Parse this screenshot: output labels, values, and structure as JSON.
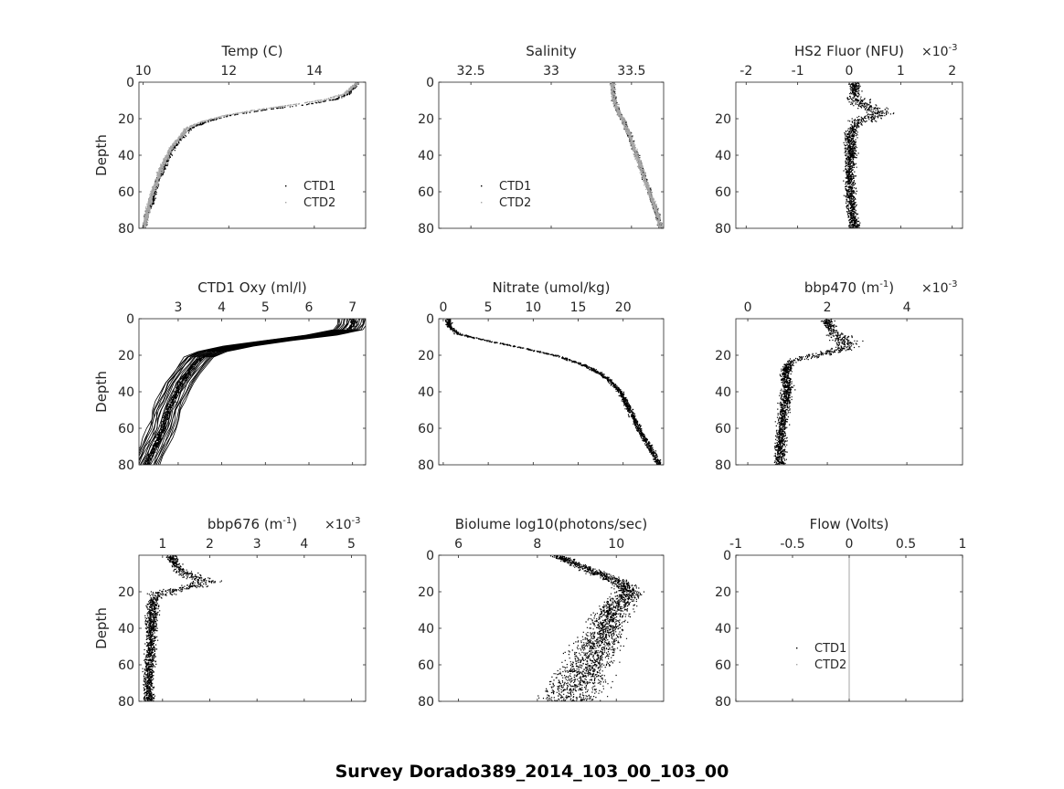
{
  "figure": {
    "suptitle": "Survey Dorado389_2014_103_00_103_00"
  },
  "colors": {
    "ctd1": "#000000",
    "ctd2": "#a6a6a6",
    "axis": "#262626"
  },
  "chart_data": [
    {
      "id": "temp",
      "type": "scatter",
      "title": "Temp (C)",
      "ylabel": "Depth",
      "xlim": [
        9.9,
        15.2
      ],
      "ylim": [
        0,
        80
      ],
      "y_reversed": true,
      "xticks": [
        10,
        12,
        14
      ],
      "yticks": [
        0,
        20,
        40,
        60,
        80
      ],
      "legend": {
        "placement": "lower-right",
        "entries": [
          "CTD1",
          "CTD2"
        ]
      },
      "series": [
        {
          "name": "CTD1",
          "color": "#000000",
          "depth": [
            0,
            3,
            6,
            9,
            12,
            15,
            18,
            21,
            25,
            30,
            35,
            40,
            45,
            50,
            55,
            60,
            65,
            70,
            75,
            80
          ],
          "values": [
            15.0,
            14.9,
            14.8,
            14.5,
            13.8,
            12.8,
            12.0,
            11.5,
            11.1,
            10.9,
            10.7,
            10.6,
            10.5,
            10.4,
            10.3,
            10.25,
            10.2,
            10.1,
            10.05,
            10.0
          ]
        },
        {
          "name": "CTD2",
          "color": "#a6a6a6",
          "depth": [
            0,
            3,
            6,
            9,
            12,
            15,
            18,
            21,
            25,
            30,
            35,
            40,
            45,
            50,
            55,
            60,
            65,
            70,
            75,
            80
          ],
          "values": [
            15.0,
            14.85,
            14.7,
            14.3,
            13.5,
            12.6,
            11.9,
            11.4,
            11.0,
            10.85,
            10.65,
            10.55,
            10.45,
            10.35,
            10.3,
            10.2,
            10.15,
            10.1,
            10.05,
            10.0
          ]
        }
      ]
    },
    {
      "id": "salinity",
      "type": "scatter",
      "title": "Salinity",
      "ylabel": "",
      "xlim": [
        32.3,
        33.7
      ],
      "ylim": [
        0,
        80
      ],
      "y_reversed": true,
      "xticks": [
        32.5,
        33,
        33.5
      ],
      "yticks": [
        0,
        20,
        40,
        60,
        80
      ],
      "legend": {
        "placement": "lower-left",
        "entries": [
          "CTD1",
          "CTD2"
        ]
      },
      "series": [
        {
          "name": "CTD1",
          "color": "#000000",
          "depth": [
            0,
            5,
            10,
            15,
            20,
            30,
            40,
            50,
            60,
            70,
            80
          ],
          "values": [
            33.38,
            33.38,
            33.39,
            33.41,
            33.44,
            33.49,
            33.53,
            33.57,
            33.61,
            33.65,
            33.68
          ]
        },
        {
          "name": "CTD2",
          "color": "#a6a6a6",
          "depth": [
            0,
            5,
            10,
            15,
            20,
            30,
            40,
            50,
            60,
            70,
            80
          ],
          "values": [
            33.38,
            33.38,
            33.39,
            33.41,
            33.44,
            33.49,
            33.53,
            33.57,
            33.61,
            33.65,
            33.68
          ]
        }
      ]
    },
    {
      "id": "hs2",
      "type": "scatter",
      "title": "HS2 Fluor (NFU)",
      "exponent_label": "×10",
      "exponent": "-3",
      "ylabel": "",
      "xlim": [
        -2.2,
        2.2
      ],
      "ylim": [
        0,
        80
      ],
      "y_reversed": true,
      "xticks": [
        -2,
        -1,
        0,
        1,
        2
      ],
      "yticks": [
        20,
        40,
        60,
        80
      ],
      "series": [
        {
          "name": "",
          "color": "#000000",
          "depth": [
            2,
            6,
            10,
            14,
            16,
            18,
            20,
            22,
            26,
            30,
            35,
            40,
            50,
            60,
            70,
            80
          ],
          "values": [
            0.1,
            0.1,
            0.15,
            0.4,
            0.6,
            0.5,
            0.3,
            0.15,
            0.05,
            0.03,
            0.02,
            0.02,
            0.0,
            0.0,
            0.05,
            0.1
          ]
        }
      ]
    },
    {
      "id": "oxy",
      "type": "line",
      "title": "CTD1 Oxy (ml/l)",
      "ylabel": "Depth",
      "xlim": [
        2.1,
        7.3
      ],
      "ylim": [
        0,
        80
      ],
      "y_reversed": true,
      "xticks": [
        3,
        4,
        5,
        6,
        7
      ],
      "yticks": [
        0,
        20,
        40,
        60,
        80
      ],
      "series": [
        {
          "name": "",
          "color": "#000000",
          "depth": [
            0,
            3,
            6,
            9,
            12,
            15,
            18,
            21,
            25,
            30,
            35,
            40,
            45,
            50,
            55,
            60,
            65,
            70,
            75,
            80
          ],
          "values": [
            7.0,
            7.0,
            6.9,
            6.3,
            5.3,
            4.4,
            3.8,
            3.5,
            3.35,
            3.2,
            3.05,
            2.95,
            2.85,
            2.75,
            2.7,
            2.65,
            2.55,
            2.45,
            2.35,
            2.25
          ]
        }
      ]
    },
    {
      "id": "nitrate",
      "type": "scatter",
      "title": "Nitrate (umol/kg)",
      "ylabel": "",
      "xlim": [
        -0.5,
        24.5
      ],
      "ylim": [
        0,
        80
      ],
      "y_reversed": true,
      "xticks": [
        0,
        5,
        10,
        15,
        20
      ],
      "yticks": [
        0,
        20,
        40,
        60,
        80
      ],
      "series": [
        {
          "name": "",
          "color": "#000000",
          "depth": [
            0,
            4,
            8,
            12,
            16,
            20,
            25,
            30,
            35,
            40,
            45,
            50,
            55,
            60,
            65,
            70,
            75,
            80
          ],
          "values": [
            0.5,
            0.6,
            1.5,
            5.0,
            9.0,
            12.5,
            15.5,
            17.5,
            18.8,
            19.6,
            20.2,
            20.7,
            21.2,
            21.7,
            22.3,
            22.9,
            23.5,
            24.0
          ]
        }
      ]
    },
    {
      "id": "bbp470",
      "type": "scatter",
      "title": "bbp470 (m",
      "title_sup": "-1",
      "title_tail": ")",
      "exponent_label": "×10",
      "exponent": "-3",
      "ylabel": "",
      "xlim": [
        -0.3,
        5.4
      ],
      "ylim": [
        0,
        80
      ],
      "y_reversed": true,
      "xticks": [
        0,
        2,
        4
      ],
      "yticks": [
        20,
        40,
        60,
        80
      ],
      "series": [
        {
          "name": "",
          "color": "#000000",
          "depth": [
            2,
            6,
            10,
            14,
            17,
            20,
            23,
            27,
            32,
            37,
            42,
            50,
            60,
            70,
            80
          ],
          "values": [
            2.0,
            2.1,
            2.3,
            2.5,
            2.3,
            1.6,
            1.1,
            0.95,
            0.95,
            1.0,
            0.95,
            0.9,
            0.85,
            0.8,
            0.8
          ]
        }
      ]
    },
    {
      "id": "bbp676",
      "type": "scatter",
      "title": "bbp676 (m",
      "title_sup": "-1",
      "title_tail": ")",
      "exponent_label": "×10",
      "exponent": "-3",
      "ylabel": "Depth",
      "xlim": [
        0.5,
        5.3
      ],
      "ylim": [
        0,
        80
      ],
      "y_reversed": true,
      "xticks": [
        1,
        2,
        3,
        4,
        5
      ],
      "yticks": [
        20,
        40,
        60,
        80
      ],
      "series": [
        {
          "name": "",
          "color": "#000000",
          "depth": [
            2,
            6,
            10,
            14,
            17,
            20,
            24,
            30,
            35,
            40,
            50,
            60,
            70,
            80
          ],
          "values": [
            1.2,
            1.3,
            1.5,
            1.9,
            1.6,
            1.0,
            0.8,
            0.8,
            0.75,
            0.75,
            0.75,
            0.7,
            0.7,
            0.7
          ]
        }
      ]
    },
    {
      "id": "biolume",
      "type": "scatter",
      "title": "Biolume log10(photons/sec)",
      "ylabel": "",
      "xlim": [
        5.5,
        11.2
      ],
      "ylim": [
        0,
        80
      ],
      "y_reversed": true,
      "xticks": [
        6,
        8,
        10
      ],
      "yticks": [
        0,
        20,
        40,
        60,
        80
      ],
      "series": [
        {
          "name": "",
          "color": "#000000",
          "depth": [
            0,
            4,
            8,
            12,
            16,
            20,
            25,
            30,
            40,
            50,
            60,
            70,
            80
          ],
          "values": [
            8.5,
            8.9,
            9.3,
            9.8,
            10.2,
            10.3,
            10.1,
            9.9,
            9.7,
            9.5,
            9.3,
            9.0,
            8.8
          ]
        }
      ]
    },
    {
      "id": "flow",
      "type": "line",
      "title": "Flow (Volts)",
      "ylabel": "",
      "xlim": [
        -1,
        1
      ],
      "ylim": [
        0,
        80
      ],
      "y_reversed": true,
      "xticks": [
        -1,
        -0.5,
        0,
        0.5,
        1
      ],
      "yticks": [
        0,
        20,
        40,
        60,
        80
      ],
      "legend": {
        "placement": "lower-left",
        "entries": [
          "CTD1",
          "CTD2"
        ]
      },
      "series": [
        {
          "name": "CTD1",
          "color": "#000000",
          "depth": [
            0,
            80
          ],
          "values": [
            0,
            0
          ]
        },
        {
          "name": "CTD2",
          "color": "#a6a6a6",
          "depth": [
            0,
            80
          ],
          "values": [
            0,
            0
          ]
        }
      ]
    }
  ]
}
